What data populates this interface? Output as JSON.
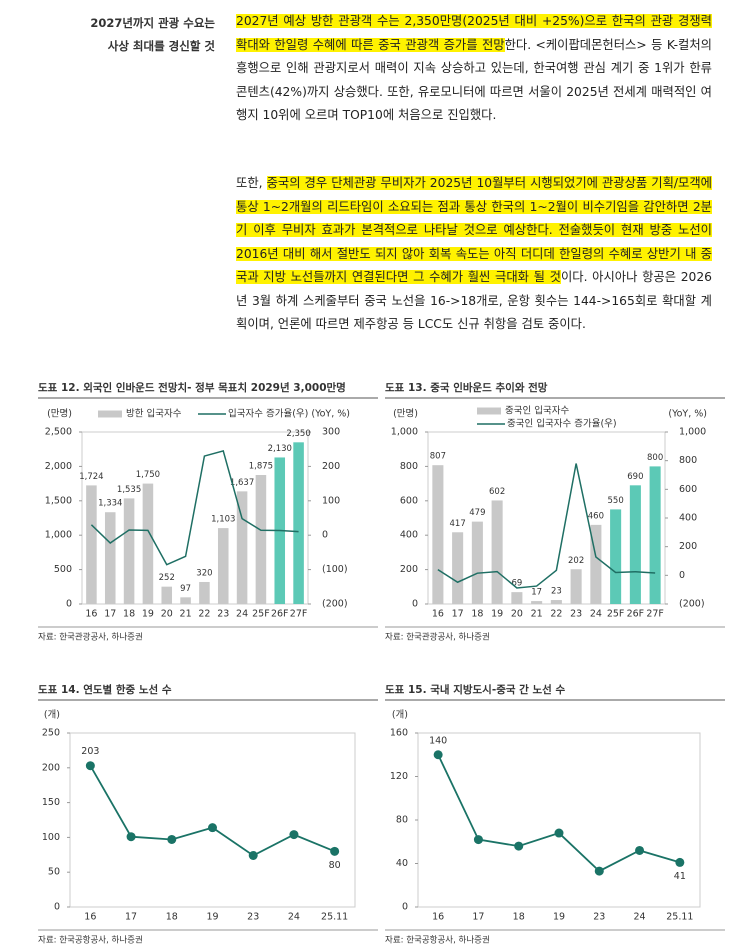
{
  "sidebar": [
    "2027년까지 관광 수요는",
    "사상 최대를 경신할 것"
  ],
  "paragraphs": [
    [
      {
        "text": "2027년 예상 방한 관광객 수는 2,350만명(2025년 대비 +25%)으로 한국의 관광 경쟁력 확대와 한일령 수혜에 따른 중국 관광객 증가를 전망",
        "highlight": true
      },
      {
        "text": "한다. <케이팝데몬헌터스> 등 K-컬처의 흥행으로 인해 관광지로서 매력이 지속 상승하고 있는데, 한국여행 관심 계기 중 1위가 한류 콘텐츠(42%)까지 상승했다. 또한, 유로모니터에 따르면 서울이 2025년 전세계 매력적인 여행지 10위에 오르며 TOP10에 처음으로 진입했다.",
        "highlight": false
      }
    ],
    [
      {
        "text": "또한, ",
        "highlight": false
      },
      {
        "text": "중국의 경우 단체관광 무비자가 2025년 10월부터 시행되었기에 관광상품 기획/모객에 통상 1~2개월의 리드타임이 소요되는 점과 통상 한국의 1~2월이 비수기임을 감안하면 2분기 이후 무비자 효과가 본격적으로 나타날 것으로 예상한다. 전술했듯이 현재 방중 노선이 2016년 대비 해서 절반도 되지 않아 회복 속도는 아직 더디데 한일령의 수혜로 상반기 내 중국과 지방 노선들까지 연결된다면 그 수혜가 훨씬 극대화 될 것",
        "highlight": true
      },
      {
        "text": "이다. 아시아나 항공은 2026년 3월 하계 스케줄부터 중국 노선을 16->18개로, 운항 횟수는 144->165회로 확대할 계획이며, 언론에 따르면 제주항공 등 LCC도 신규 취항을 검토 중이다.",
        "highlight": false
      }
    ]
  ],
  "chart_data": [
    {
      "type": "combo",
      "title": "도표 12. 외국인 인바운드 전망치- 정부 목표치 2029년 3,000만명",
      "y_unit": "(만명)",
      "y2_unit": "(YoY, %)",
      "source": "자료: 한국관광공사, 하나증권",
      "legend": "horizontal",
      "categories": [
        "16",
        "17",
        "18",
        "19",
        "20",
        "21",
        "22",
        "23",
        "24",
        "25F",
        "26F",
        "27F"
      ],
      "series": [
        {
          "name": "방한 입국자수",
          "type": "bar",
          "color": "#c8c8c8",
          "colors": [
            "#c8c8c8",
            "#c8c8c8",
            "#c8c8c8",
            "#c8c8c8",
            "#c8c8c8",
            "#c8c8c8",
            "#c8c8c8",
            "#c8c8c8",
            "#c8c8c8",
            "#c8c8c8",
            "#5cc9b6",
            "#5cc9b6"
          ],
          "values": [
            1724,
            1334,
            1535,
            1750,
            252,
            97,
            320,
            1103,
            1637,
            1875,
            2130,
            2350
          ],
          "value_labels": [
            "1,724",
            "1,334",
            "1,535",
            "1,750",
            "252",
            "97",
            "320",
            "1,103",
            "1,637",
            "1,875",
            "2,130",
            "2,350"
          ]
        },
        {
          "name": "입국자수 증가율(우)",
          "type": "line",
          "axis": "y2",
          "color": "#1f6f64",
          "values": [
            30.3,
            -22.7,
            15.1,
            14.0,
            -85.6,
            -61.5,
            230,
            245,
            48,
            14.5,
            13.6,
            10.3
          ]
        }
      ],
      "ylim": [
        0,
        2500
      ],
      "yticks": [
        0,
        500,
        {
          "value": 1000,
          "label": "1,000"
        },
        {
          "value": 1500,
          "label": "1,500"
        },
        {
          "value": 2000,
          "label": "2,000"
        },
        {
          "value": 2500,
          "label": "2,500"
        }
      ],
      "y2lim": [
        -200,
        300
      ],
      "y2ticks": [
        {
          "value": -200,
          "label": "(200)"
        },
        {
          "value": -100,
          "label": "(100)"
        },
        0,
        100,
        200,
        300
      ]
    },
    {
      "type": "combo",
      "title": "도표 13. 중국 인바운드 추이와 전망",
      "y_unit": "(만명)",
      "y2_unit": "(YoY, %)",
      "source": "자료: 한국관광공사, 하나증권",
      "legend": "vertical",
      "categories": [
        "16",
        "17",
        "18",
        "19",
        "20",
        "21",
        "22",
        "23",
        "24",
        "25F",
        "26F",
        "27F"
      ],
      "series": [
        {
          "name": "중국인 입국자수",
          "type": "bar",
          "color": "#c8c8c8",
          "colors": [
            "#c8c8c8",
            "#c8c8c8",
            "#c8c8c8",
            "#c8c8c8",
            "#c8c8c8",
            "#c8c8c8",
            "#c8c8c8",
            "#c8c8c8",
            "#c8c8c8",
            "#5cc9b6",
            "#5cc9b6",
            "#5cc9b6"
          ],
          "values": [
            807,
            417,
            479,
            602,
            69,
            17,
            23,
            202,
            460,
            550,
            690,
            800
          ]
        },
        {
          "name": "중국인 입국자수 증가율(우)",
          "type": "line",
          "axis": "y2",
          "color": "#1f6f64",
          "values": [
            40,
            -48,
            15,
            26,
            -88,
            -75,
            35,
            780,
            128,
            20,
            25,
            16
          ]
        }
      ],
      "ylim": [
        0,
        1000
      ],
      "yticks": [
        0,
        200,
        400,
        600,
        800,
        {
          "value": 1000,
          "label": "1,000"
        }
      ],
      "y2lim": [
        -200,
        1000
      ],
      "y2ticks": [
        {
          "value": -200,
          "label": "(200)"
        },
        0,
        200,
        400,
        600,
        800,
        {
          "value": 1000,
          "label": "1,000"
        }
      ]
    },
    {
      "type": "line",
      "title": "도표 14. 연도별 한중 노선 수",
      "y_unit": "(개)",
      "source": "자료: 한국공항공사, 하나증권",
      "categories": [
        "16",
        "17",
        "18",
        "19",
        "23",
        "24",
        "25.11"
      ],
      "series": [
        {
          "color": "#1a7366",
          "values": [
            203,
            101,
            97,
            114,
            74,
            104,
            80
          ],
          "value_labels": [
            "203",
            null,
            null,
            null,
            null,
            null,
            "80"
          ]
        }
      ],
      "ylim": [
        0,
        250
      ],
      "yticks": [
        0,
        50,
        100,
        150,
        200,
        250
      ]
    },
    {
      "type": "line",
      "title": "도표 15. 국내 지방도시-중국 간 노선 수",
      "y_unit": "(개)",
      "source": "자료: 한국공항공사, 하나증권",
      "categories": [
        "16",
        "17",
        "18",
        "19",
        "23",
        "24",
        "25.11"
      ],
      "series": [
        {
          "color": "#1a7366",
          "values": [
            140,
            62,
            56,
            68,
            33,
            52,
            41
          ],
          "value_labels": [
            "140",
            null,
            null,
            null,
            null,
            null,
            "41"
          ]
        }
      ],
      "ylim": [
        0,
        160
      ],
      "yticks": [
        0,
        40,
        80,
        120,
        160
      ]
    }
  ]
}
